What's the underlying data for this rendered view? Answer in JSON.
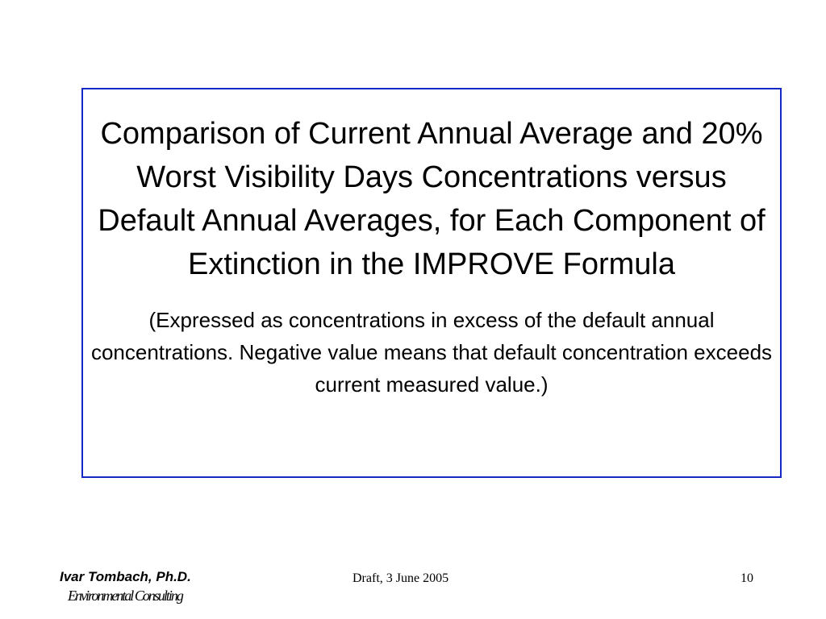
{
  "slide": {
    "title": "Comparison of Current Annual Average and 20% Worst Visibility Days Concentrations versus Default Annual Averages, for Each Component of Extinction in the IMPROVE Formula",
    "subtitle": "(Expressed as concentrations in excess of the default annual concentrations. Negative value means that default concentration exceeds current measured value.)",
    "border_color": "#1428c8"
  },
  "footer": {
    "author": "Ivar Tombach, Ph.D.",
    "organization": "Environmental Consulting",
    "date": "Draft, 3 June 2005",
    "page_number": "10"
  }
}
